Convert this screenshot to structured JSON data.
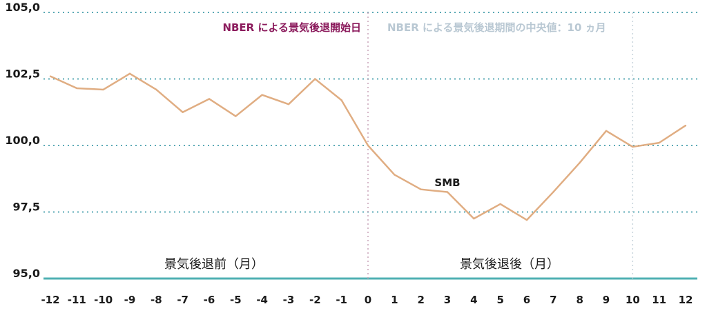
{
  "chart_data": {
    "type": "line",
    "title": "",
    "xlabel": "",
    "ylabel": "",
    "x": [
      -12,
      -11,
      -10,
      -9,
      -8,
      -7,
      -6,
      -5,
      -4,
      -3,
      -2,
      -1,
      0,
      1,
      2,
      3,
      4,
      5,
      6,
      7,
      8,
      9,
      10,
      11,
      12
    ],
    "x_tick_labels": [
      "-12",
      "-11",
      "-10",
      "-9",
      "-8",
      "-7",
      "-6",
      "-5",
      "-4",
      "-3",
      "-2",
      "-1",
      "0",
      "1",
      "2",
      "3",
      "4",
      "5",
      "6",
      "7",
      "8",
      "9",
      "10",
      "11",
      "12"
    ],
    "y_ticks": [
      95.0,
      97.5,
      100.0,
      102.5,
      105.0
    ],
    "y_tick_labels": [
      "95,0",
      "97,5",
      "100,0",
      "102,5",
      "105,0"
    ],
    "ylim": [
      95.0,
      105.0
    ],
    "xlim": [
      -12,
      12
    ],
    "grid": "horizontal dotted",
    "series": [
      {
        "name": "SMB",
        "values": [
          102.6,
          102.15,
          102.1,
          102.7,
          102.1,
          101.25,
          101.75,
          101.1,
          101.9,
          101.55,
          102.5,
          101.7,
          100.0,
          98.9,
          98.35,
          98.25,
          97.25,
          97.8,
          97.2,
          98.25,
          99.35,
          100.55,
          99.95,
          100.1,
          100.75
        ],
        "color": "#e0ad82"
      }
    ],
    "annotations": {
      "recession_start": {
        "x": 0,
        "label": "NBER による景気後退開始日",
        "color": "#8b1a5c"
      },
      "median_duration": {
        "x": 10,
        "label": "NBER による景気後退期間の中央値：10 ヵ月",
        "color": "#b9c8d3"
      },
      "before_label": "景気後退前（月）",
      "after_label": "景気後退後（月）"
    },
    "colors": {
      "grid": "#5aa9b5",
      "baseline": "#4fb0b3",
      "vline": "#c9a4b9"
    }
  }
}
